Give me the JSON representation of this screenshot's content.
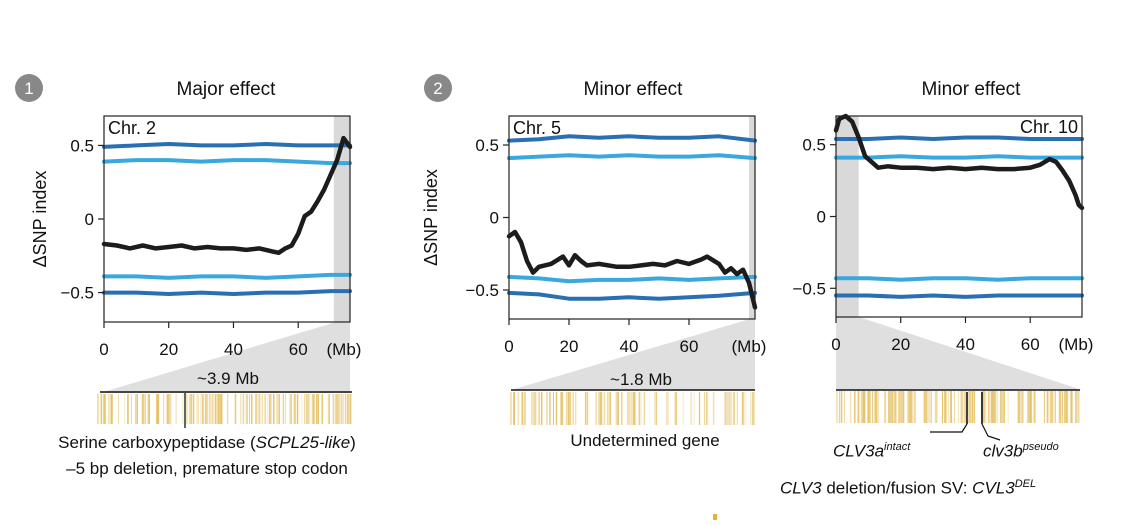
{
  "figure": {
    "colors": {
      "outer_threshold": "#2a6fb3",
      "inner_threshold": "#3aa8dc",
      "index_line": "#1c1c1c",
      "highlight": "#d9d9d9",
      "gene_marks": "#e6c36a",
      "badge": "#888888"
    },
    "ylabel": "ΔSNP index",
    "x_unit_label": "(Mb)"
  },
  "chart_data": [
    {
      "type": "line",
      "badge": "1",
      "title": "Major effect",
      "chromosome": "Chr. 2",
      "xlabel": "(Mb)",
      "ylabel": "ΔSNP index",
      "xlim": [
        0,
        76
      ],
      "ylim": [
        -0.7,
        0.7
      ],
      "x_ticks": [
        0,
        20,
        40,
        60
      ],
      "x_tick_labels": [
        "0",
        "20",
        "40",
        "60"
      ],
      "y_ticks": [
        0.5,
        0,
        -0.5
      ],
      "y_tick_labels": [
        "0.5",
        "0",
        "−0.5"
      ],
      "highlight_region": [
        71,
        76
      ],
      "region_size_label": "~3.9 Mb",
      "gene_label": "Serine carboxypeptidase (SCPL25-like)",
      "gene_label_parts": {
        "prefix": "Serine carboxypeptidase (",
        "italic": "SCPL25-like",
        "suffix": ")"
      },
      "mutation_label": "–5 bp deletion, premature stop codon",
      "series": [
        {
          "name": "upper 99% threshold",
          "x": [
            0,
            10,
            20,
            30,
            40,
            50,
            60,
            70,
            76
          ],
          "values": [
            0.49,
            0.5,
            0.51,
            0.5,
            0.5,
            0.51,
            0.5,
            0.5,
            0.5
          ]
        },
        {
          "name": "upper 95% threshold",
          "x": [
            0,
            10,
            20,
            30,
            40,
            50,
            60,
            70,
            76
          ],
          "values": [
            0.39,
            0.4,
            0.4,
            0.39,
            0.4,
            0.4,
            0.39,
            0.38,
            0.38
          ]
        },
        {
          "name": "ΔSNP index",
          "x": [
            0,
            4,
            8,
            12,
            16,
            20,
            24,
            28,
            32,
            36,
            40,
            44,
            48,
            52,
            54,
            56,
            58,
            60,
            62,
            64,
            66,
            68,
            70,
            72,
            74,
            76
          ],
          "values": [
            -0.17,
            -0.18,
            -0.2,
            -0.18,
            -0.2,
            -0.19,
            -0.18,
            -0.2,
            -0.19,
            -0.2,
            -0.2,
            -0.21,
            -0.2,
            -0.22,
            -0.23,
            -0.2,
            -0.18,
            -0.1,
            0.02,
            0.05,
            0.12,
            0.2,
            0.3,
            0.4,
            0.55,
            0.49
          ]
        },
        {
          "name": "lower 95% threshold",
          "x": [
            0,
            10,
            20,
            30,
            40,
            50,
            60,
            70,
            76
          ],
          "values": [
            -0.39,
            -0.39,
            -0.4,
            -0.39,
            -0.39,
            -0.4,
            -0.39,
            -0.38,
            -0.38
          ]
        },
        {
          "name": "lower 99% threshold",
          "x": [
            0,
            10,
            20,
            30,
            40,
            50,
            60,
            70,
            76
          ],
          "values": [
            -0.5,
            -0.5,
            -0.51,
            -0.5,
            -0.51,
            -0.5,
            -0.5,
            -0.49,
            -0.49
          ]
        }
      ]
    },
    {
      "type": "line",
      "badge": "2",
      "title": "Minor effect",
      "chromosome": "Chr. 5",
      "xlabel": "(Mb)",
      "ylabel": "ΔSNP index",
      "xlim": [
        0,
        82
      ],
      "ylim": [
        -0.7,
        0.7
      ],
      "x_ticks": [
        0,
        20,
        40,
        60
      ],
      "x_tick_labels": [
        "0",
        "20",
        "40",
        "60"
      ],
      "y_ticks": [
        0.5,
        0,
        -0.5
      ],
      "y_tick_labels": [
        "0.5",
        "0",
        "−0.5"
      ],
      "highlight_region": [
        80,
        82
      ],
      "region_size_label": "~1.8 Mb",
      "gene_label": "Undetermined gene",
      "series": [
        {
          "name": "upper 99% threshold",
          "x": [
            0,
            10,
            20,
            30,
            40,
            50,
            60,
            70,
            82
          ],
          "values": [
            0.53,
            0.54,
            0.56,
            0.55,
            0.56,
            0.55,
            0.55,
            0.56,
            0.53
          ]
        },
        {
          "name": "upper 95% threshold",
          "x": [
            0,
            10,
            20,
            30,
            40,
            50,
            60,
            70,
            82
          ],
          "values": [
            0.41,
            0.42,
            0.43,
            0.42,
            0.43,
            0.42,
            0.42,
            0.43,
            0.41
          ]
        },
        {
          "name": "ΔSNP index",
          "x": [
            0,
            2,
            4,
            6,
            8,
            10,
            14,
            18,
            20,
            22,
            24,
            26,
            30,
            36,
            40,
            44,
            48,
            52,
            56,
            60,
            64,
            66,
            70,
            72,
            74,
            76,
            78,
            80,
            82
          ],
          "values": [
            -0.13,
            -0.1,
            -0.17,
            -0.3,
            -0.38,
            -0.34,
            -0.32,
            -0.27,
            -0.33,
            -0.26,
            -0.3,
            -0.33,
            -0.32,
            -0.34,
            -0.34,
            -0.33,
            -0.32,
            -0.33,
            -0.3,
            -0.32,
            -0.29,
            -0.27,
            -0.32,
            -0.38,
            -0.35,
            -0.39,
            -0.36,
            -0.45,
            -0.62
          ]
        },
        {
          "name": "lower 95% threshold",
          "x": [
            0,
            10,
            20,
            30,
            40,
            50,
            60,
            70,
            82
          ],
          "values": [
            -0.41,
            -0.42,
            -0.44,
            -0.43,
            -0.43,
            -0.42,
            -0.43,
            -0.42,
            -0.41
          ]
        },
        {
          "name": "lower 99% threshold",
          "x": [
            0,
            10,
            20,
            30,
            40,
            50,
            60,
            70,
            82
          ],
          "values": [
            -0.52,
            -0.53,
            -0.56,
            -0.56,
            -0.55,
            -0.56,
            -0.55,
            -0.54,
            -0.52
          ]
        }
      ]
    },
    {
      "type": "line",
      "title": "Minor effect",
      "chromosome": "Chr. 10",
      "xlabel": "(Mb)",
      "xlim": [
        0,
        76
      ],
      "ylim": [
        -0.7,
        0.7
      ],
      "x_ticks": [
        0,
        20,
        40,
        60
      ],
      "x_tick_labels": [
        "0",
        "20",
        "40",
        "60"
      ],
      "y_ticks": [
        0.5,
        0,
        -0.5
      ],
      "y_tick_labels": [
        "0.5",
        "0",
        "−0.5"
      ],
      "highlight_region": [
        0,
        7
      ],
      "gene_labels": [
        {
          "name": "CLV3a",
          "sup": "intact"
        },
        {
          "name": "clv3b",
          "sup": "pseudo"
        }
      ],
      "sv_label": {
        "prefix": "CLV3",
        "middle": " deletion/fusion SV: ",
        "name": "CVL3",
        "sup": "DEL"
      },
      "series": [
        {
          "name": "upper 99% threshold",
          "x": [
            0,
            10,
            20,
            30,
            40,
            50,
            60,
            70,
            76
          ],
          "values": [
            0.54,
            0.54,
            0.55,
            0.54,
            0.55,
            0.55,
            0.54,
            0.54,
            0.54
          ]
        },
        {
          "name": "upper 95% threshold",
          "x": [
            0,
            10,
            20,
            30,
            40,
            50,
            60,
            70,
            76
          ],
          "values": [
            0.41,
            0.41,
            0.42,
            0.41,
            0.41,
            0.42,
            0.41,
            0.41,
            0.41
          ]
        },
        {
          "name": "ΔSNP index",
          "x": [
            0,
            1,
            3,
            5,
            7,
            9,
            11,
            13,
            16,
            20,
            25,
            30,
            35,
            40,
            45,
            50,
            55,
            60,
            63,
            66,
            68,
            70,
            72,
            74,
            75,
            76
          ],
          "values": [
            0.6,
            0.68,
            0.7,
            0.66,
            0.55,
            0.42,
            0.38,
            0.34,
            0.35,
            0.34,
            0.34,
            0.33,
            0.34,
            0.33,
            0.34,
            0.33,
            0.33,
            0.34,
            0.36,
            0.4,
            0.38,
            0.32,
            0.25,
            0.15,
            0.08,
            0.06
          ]
        },
        {
          "name": "lower 95% threshold",
          "x": [
            0,
            10,
            20,
            30,
            40,
            50,
            60,
            70,
            76
          ],
          "values": [
            -0.43,
            -0.43,
            -0.44,
            -0.43,
            -0.43,
            -0.44,
            -0.43,
            -0.43,
            -0.43
          ]
        },
        {
          "name": "lower 99% threshold",
          "x": [
            0,
            10,
            20,
            30,
            40,
            50,
            60,
            70,
            76
          ],
          "values": [
            -0.55,
            -0.55,
            -0.56,
            -0.55,
            -0.56,
            -0.55,
            -0.55,
            -0.55,
            -0.55
          ]
        }
      ]
    }
  ]
}
